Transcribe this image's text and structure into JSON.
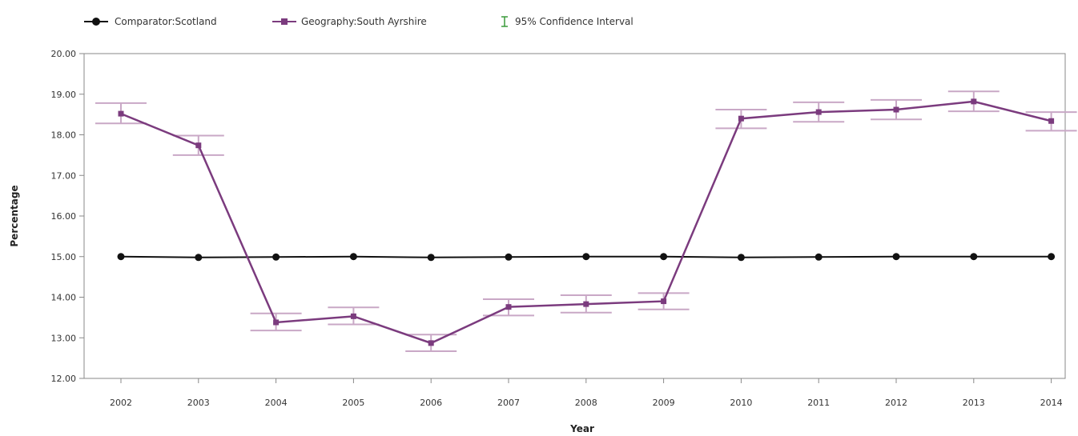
{
  "chart_data": {
    "type": "line",
    "xlabel": "Year",
    "ylabel": "Percentage",
    "ylim": [
      12,
      20
    ],
    "yticks": [
      "12.00",
      "13.00",
      "14.00",
      "15.00",
      "16.00",
      "17.00",
      "18.00",
      "19.00",
      "20.00"
    ],
    "categories": [
      "2002",
      "2003",
      "2004",
      "2005",
      "2006",
      "2007",
      "2008",
      "2009",
      "2010",
      "2011",
      "2012",
      "2013",
      "2014"
    ],
    "grid": false,
    "legend_position": "top-left",
    "confidence_interval_label": "95% Confidence Interval",
    "confidence_interval_color": "#3a9a3a",
    "series": [
      {
        "name": "Comparator:Scotland",
        "color": "#111111",
        "marker": "circle",
        "values": [
          15.0,
          14.98,
          14.99,
          15.0,
          14.98,
          14.99,
          15.0,
          15.0,
          14.98,
          14.99,
          15.0,
          15.0,
          15.0
        ]
      },
      {
        "name": "Geography:South Ayrshire",
        "color": "#7b3b7e",
        "ci_color": "#c9a8c6",
        "marker": "square",
        "values": [
          18.52,
          17.74,
          13.38,
          13.53,
          12.87,
          13.76,
          13.83,
          13.9,
          18.4,
          18.56,
          18.62,
          18.82,
          18.34
        ],
        "ci_lower": [
          18.28,
          17.5,
          13.18,
          13.33,
          12.67,
          13.55,
          13.62,
          13.7,
          18.16,
          18.32,
          18.38,
          18.58,
          18.1
        ],
        "ci_upper": [
          18.78,
          17.98,
          13.6,
          13.75,
          13.08,
          13.95,
          14.05,
          14.1,
          18.62,
          18.8,
          18.86,
          19.07,
          18.56
        ]
      }
    ]
  }
}
